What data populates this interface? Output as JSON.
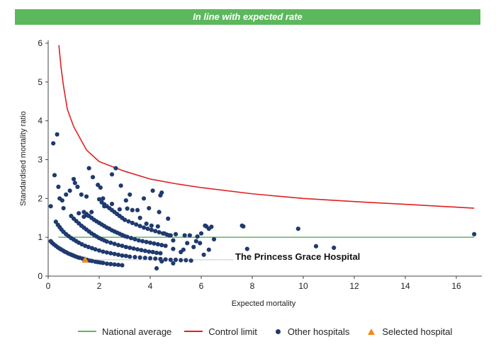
{
  "banner": "In line with expected rate",
  "chart_data": {
    "type": "scatter",
    "title": "",
    "xlabel": "Expected mortality",
    "ylabel": "Standardised mortality ratio",
    "xlim": [
      0,
      17
    ],
    "ylim": [
      0,
      6
    ],
    "xticks": [
      0,
      2,
      4,
      6,
      8,
      10,
      12,
      14,
      16
    ],
    "yticks": [
      0,
      1,
      2,
      3,
      4,
      5,
      6
    ],
    "grid": false,
    "legend_position": "bottom",
    "series": [
      {
        "name": "National average",
        "kind": "line",
        "color": "#5cb85c",
        "x": [
          0.4,
          16.7
        ],
        "y": [
          1.0,
          1.0
        ]
      },
      {
        "name": "Control limit",
        "kind": "line",
        "color": "#e02020",
        "x": [
          0.42,
          0.5,
          0.6,
          0.75,
          1.0,
          1.5,
          2.0,
          3.0,
          4.0,
          5.0,
          6.0,
          8.0,
          10.0,
          12.0,
          14.0,
          16.7
        ],
        "y": [
          5.95,
          5.4,
          4.9,
          4.3,
          3.85,
          3.25,
          2.95,
          2.7,
          2.5,
          2.38,
          2.28,
          2.12,
          2.0,
          1.92,
          1.85,
          1.75
        ]
      },
      {
        "name": "Other hospitals",
        "kind": "scatter",
        "color": "#1f3a6e",
        "x": [
          0.1,
          0.15,
          0.22,
          0.3,
          0.38,
          0.45,
          0.5,
          0.58,
          0.65,
          0.72,
          0.8,
          0.88,
          0.95,
          1.02,
          1.1,
          1.18,
          1.25,
          1.35,
          1.42,
          1.52,
          1.62,
          1.72,
          1.85,
          1.95,
          2.05,
          2.15,
          2.3,
          2.45,
          2.6,
          2.75,
          2.9,
          0.3,
          0.38,
          0.45,
          0.52,
          0.6,
          0.7,
          0.8,
          0.9,
          1.0,
          1.1,
          1.2,
          1.32,
          1.45,
          1.58,
          1.72,
          1.85,
          2.0,
          2.15,
          2.3,
          2.45,
          2.6,
          2.75,
          2.9,
          3.05,
          3.2,
          3.4,
          3.6,
          3.8,
          4.0,
          4.2,
          4.4,
          4.6,
          4.8,
          5.0,
          5.2,
          5.4,
          5.6,
          0.9,
          1.0,
          1.1,
          1.2,
          1.3,
          1.4,
          1.5,
          1.6,
          1.7,
          1.8,
          1.9,
          2.0,
          2.1,
          2.2,
          2.3,
          2.45,
          2.6,
          2.75,
          2.9,
          3.05,
          3.2,
          3.35,
          3.5,
          3.65,
          3.8,
          3.95,
          4.1,
          4.25,
          4.4,
          1.4,
          1.5,
          1.6,
          1.7,
          1.8,
          1.9,
          2.0,
          2.1,
          2.2,
          2.3,
          2.4,
          2.5,
          2.6,
          2.7,
          2.8,
          2.9,
          3.0,
          3.1,
          3.25,
          3.4,
          3.55,
          3.7,
          3.85,
          4.0,
          4.15,
          4.3,
          4.45,
          4.6,
          2.1,
          2.2,
          2.3,
          2.4,
          2.5,
          2.6,
          2.7,
          2.8,
          2.9,
          3.0,
          3.15,
          3.3,
          3.45,
          3.6,
          3.75,
          3.9,
          4.05,
          4.2,
          4.35,
          4.5,
          4.65,
          0.2,
          0.35,
          0.45,
          0.55,
          0.7,
          0.85,
          1.0,
          1.05,
          1.15,
          1.3,
          1.5,
          1.6,
          1.75,
          1.95,
          2.05,
          2.15,
          2.5,
          2.65,
          2.85,
          3.05,
          3.2,
          3.5,
          3.75,
          3.95,
          4.1,
          4.35,
          4.4,
          4.45,
          4.7,
          0.1,
          0.25,
          0.4,
          0.6,
          1.2,
          1.4,
          1.55,
          1.7,
          2.0,
          2.2,
          2.5,
          2.8,
          3.1,
          3.3,
          3.6,
          3.85,
          4.05,
          4.3,
          4.55,
          4.8,
          5.0,
          5.35,
          5.55,
          5.85,
          6.0,
          6.2,
          6.4,
          5.3,
          4.9,
          4.75,
          4.9,
          5.45,
          5.7,
          5.8,
          5.95,
          6.15,
          6.3,
          6.5,
          6.1,
          6.3,
          4.25,
          4.45,
          4.9,
          5.2,
          7.6,
          7.65,
          7.8,
          9.8,
          10.5,
          11.2,
          16.7
        ],
        "y": [
          0.9,
          0.86,
          0.82,
          0.78,
          0.74,
          0.71,
          0.69,
          0.66,
          0.63,
          0.61,
          0.58,
          0.56,
          0.54,
          0.52,
          0.5,
          0.48,
          0.47,
          0.45,
          0.44,
          0.42,
          0.4,
          0.39,
          0.37,
          0.36,
          0.35,
          0.34,
          0.32,
          0.31,
          0.3,
          0.29,
          0.28,
          1.4,
          1.32,
          1.26,
          1.2,
          1.14,
          1.08,
          1.03,
          0.98,
          0.94,
          0.9,
          0.86,
          0.82,
          0.78,
          0.75,
          0.72,
          0.69,
          0.66,
          0.63,
          0.61,
          0.59,
          0.57,
          0.55,
          0.53,
          0.52,
          0.5,
          0.49,
          0.48,
          0.47,
          0.46,
          0.45,
          0.44,
          0.43,
          0.42,
          0.42,
          0.41,
          0.41,
          0.4,
          1.55,
          1.48,
          1.42,
          1.36,
          1.3,
          1.25,
          1.2,
          1.15,
          1.1,
          1.06,
          1.02,
          0.98,
          0.95,
          0.92,
          0.89,
          0.86,
          0.83,
          0.8,
          0.78,
          0.75,
          0.73,
          0.71,
          0.69,
          0.67,
          0.65,
          0.63,
          0.62,
          0.6,
          0.59,
          1.65,
          1.6,
          1.55,
          1.5,
          1.45,
          1.41,
          1.37,
          1.33,
          1.29,
          1.25,
          1.22,
          1.18,
          1.15,
          1.12,
          1.09,
          1.06,
          1.03,
          1.01,
          0.98,
          0.95,
          0.92,
          0.9,
          0.88,
          0.86,
          0.84,
          0.82,
          0.8,
          0.78,
          1.9,
          1.85,
          1.8,
          1.75,
          1.7,
          1.65,
          1.6,
          1.55,
          1.5,
          1.45,
          1.41,
          1.37,
          1.33,
          1.29,
          1.25,
          1.22,
          1.19,
          1.16,
          1.13,
          1.1,
          1.07,
          3.42,
          3.65,
          2.0,
          1.95,
          2.1,
          2.2,
          2.5,
          2.4,
          2.3,
          2.1,
          2.05,
          2.78,
          2.55,
          2.35,
          2.28,
          2.0,
          2.62,
          2.78,
          2.33,
          1.95,
          2.1,
          1.7,
          2.0,
          1.75,
          2.2,
          1.65,
          2.08,
          2.15,
          1.48,
          1.8,
          2.6,
          2.3,
          1.75,
          1.62,
          1.53,
          1.56,
          1.65,
          1.98,
          1.8,
          1.86,
          1.72,
          1.74,
          1.7,
          1.5,
          1.35,
          1.3,
          1.28,
          1.1,
          1.05,
          1.08,
          1.05,
          1.05,
          1.02,
          1.1,
          1.28,
          1.27,
          0.68,
          0.92,
          1.05,
          0.7,
          0.85,
          0.75,
          0.9,
          0.85,
          1.3,
          1.22,
          0.95,
          0.55,
          0.68,
          0.2,
          0.38,
          0.33,
          0.62,
          1.3,
          1.28,
          0.7,
          1.22,
          0.77,
          0.73,
          1.08
        ]
      },
      {
        "name": "Selected hospital",
        "kind": "scatter",
        "marker": "triangle",
        "color": "#f08c1c",
        "x": [
          1.45
        ],
        "y": [
          0.42
        ],
        "label": "The Princess Grace Hospital"
      }
    ]
  }
}
